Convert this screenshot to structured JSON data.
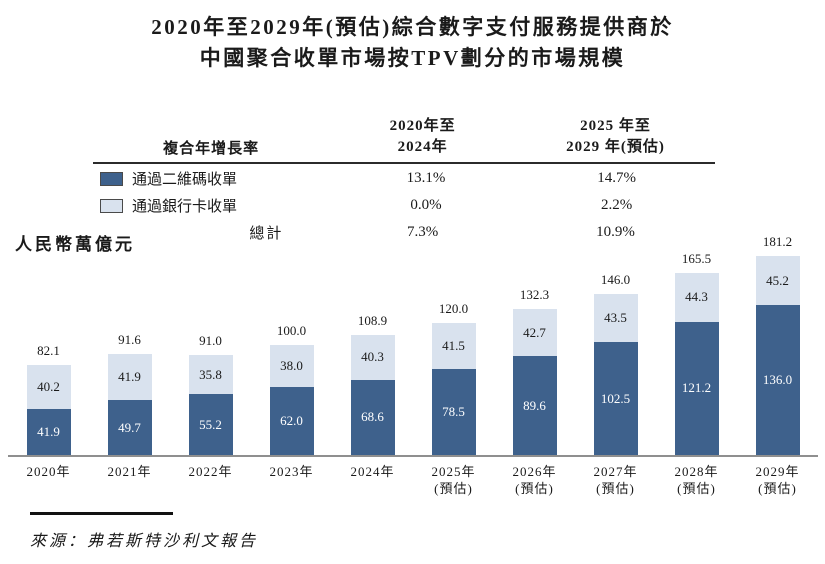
{
  "title": {
    "line1": "2020年至2029年(預估)綜合數字支付服務提供商於",
    "line2": "中國聚合收單市場按TPV劃分的市場規模"
  },
  "cagr_table": {
    "header": {
      "col1": "複合年增長率",
      "col2_line1": "2020年至",
      "col2_line2": "2024年",
      "col3_line1": "2025 年至",
      "col3_line2": "2029 年(預估)"
    },
    "rows": [
      {
        "label": "通過二維碼收單",
        "swatch": "dark",
        "v1": "13.1%",
        "v2": "14.7%"
      },
      {
        "label": "通過銀行卡收單",
        "swatch": "light",
        "v1": "0.0%",
        "v2": "2.2%"
      },
      {
        "label": "總計",
        "swatch": "none",
        "v1": "7.3%",
        "v2": "10.9%"
      }
    ]
  },
  "axis_unit_label": "人民幣萬億元",
  "chart_data": {
    "type": "bar",
    "stacked": true,
    "title": "2020年至2029年(預估)綜合數字支付服務提供商於中國聚合收單市場按TPV劃分的市場規模",
    "ylabel": "人民幣萬億元",
    "ylim": [
      0,
      200
    ],
    "grid": false,
    "legend_position": "table-top-left",
    "categories": [
      {
        "year": "2020年",
        "note": ""
      },
      {
        "year": "2021年",
        "note": ""
      },
      {
        "year": "2022年",
        "note": ""
      },
      {
        "year": "2023年",
        "note": ""
      },
      {
        "year": "2024年",
        "note": ""
      },
      {
        "year": "2025年",
        "note": "(預估)"
      },
      {
        "year": "2026年",
        "note": "(預估)"
      },
      {
        "year": "2027年",
        "note": "(預估)"
      },
      {
        "year": "2028年",
        "note": "(預估)"
      },
      {
        "year": "2029年",
        "note": "(預估)"
      }
    ],
    "series": [
      {
        "name": "通過二維碼收單",
        "color": "#3e618c",
        "values": [
          41.9,
          49.7,
          55.2,
          62.0,
          68.6,
          78.5,
          89.6,
          102.5,
          121.2,
          136.0
        ]
      },
      {
        "name": "通過銀行卡收單",
        "color": "#d9e2ee",
        "values": [
          40.2,
          41.9,
          35.8,
          38.0,
          40.3,
          41.5,
          42.7,
          43.5,
          44.3,
          45.2
        ]
      }
    ],
    "totals": [
      82.1,
      91.6,
      91.0,
      100.0,
      108.9,
      120.0,
      132.3,
      146.0,
      165.5,
      181.2
    ]
  },
  "source": "來源：弗若斯特沙利文報告",
  "colors": {
    "dark_series": "#3e618c",
    "light_series": "#d9e2ee",
    "axis_line": "#8f8f8f",
    "text": "#1a1a1a"
  }
}
